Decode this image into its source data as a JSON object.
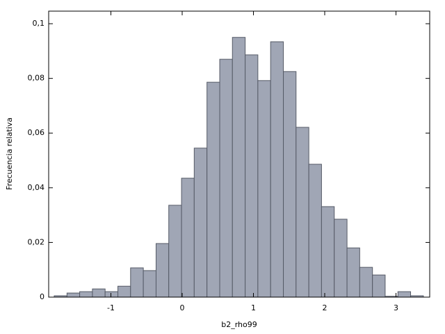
{
  "chart_data": {
    "type": "histogram",
    "xlabel": "b2_rho99",
    "ylabel": "Frecuencia relativa",
    "bins": [
      -1.795,
      -1.616,
      -1.438,
      -1.259,
      -1.081,
      -0.902,
      -0.724,
      -0.545,
      -0.366,
      -0.188,
      -0.009,
      0.169,
      0.348,
      0.527,
      0.705,
      0.884,
      1.062,
      1.241,
      1.42,
      1.598,
      1.777,
      1.955,
      2.134,
      2.313,
      2.491,
      2.67,
      2.848,
      3.027,
      3.205,
      3.384
    ],
    "values": [
      0.0005,
      0.0015,
      0.002,
      0.003,
      0.002,
      0.004,
      0.0107,
      0.0097,
      0.0196,
      0.0336,
      0.0435,
      0.0545,
      0.0786,
      0.087,
      0.095,
      0.0886,
      0.0792,
      0.0934,
      0.0825,
      0.0621,
      0.0486,
      0.0331,
      0.0285,
      0.018,
      0.0109,
      0.0081,
      0.0003,
      0.002,
      0.0005
    ],
    "color": "#a0a6b5",
    "xlim": [
      -1.873,
      3.473
    ],
    "ylim": [
      0,
      0.1046
    ],
    "xticks": [
      -1,
      0,
      1,
      2,
      3
    ],
    "yticks": [
      0,
      {
        "value": 0.02,
        "label": "0,02"
      },
      {
        "value": 0.04,
        "label": "0,04"
      },
      {
        "value": 0.06,
        "label": "0,06"
      },
      {
        "value": 0.08,
        "label": "0,08"
      },
      {
        "value": 0.1,
        "label": "0,1"
      }
    ]
  }
}
